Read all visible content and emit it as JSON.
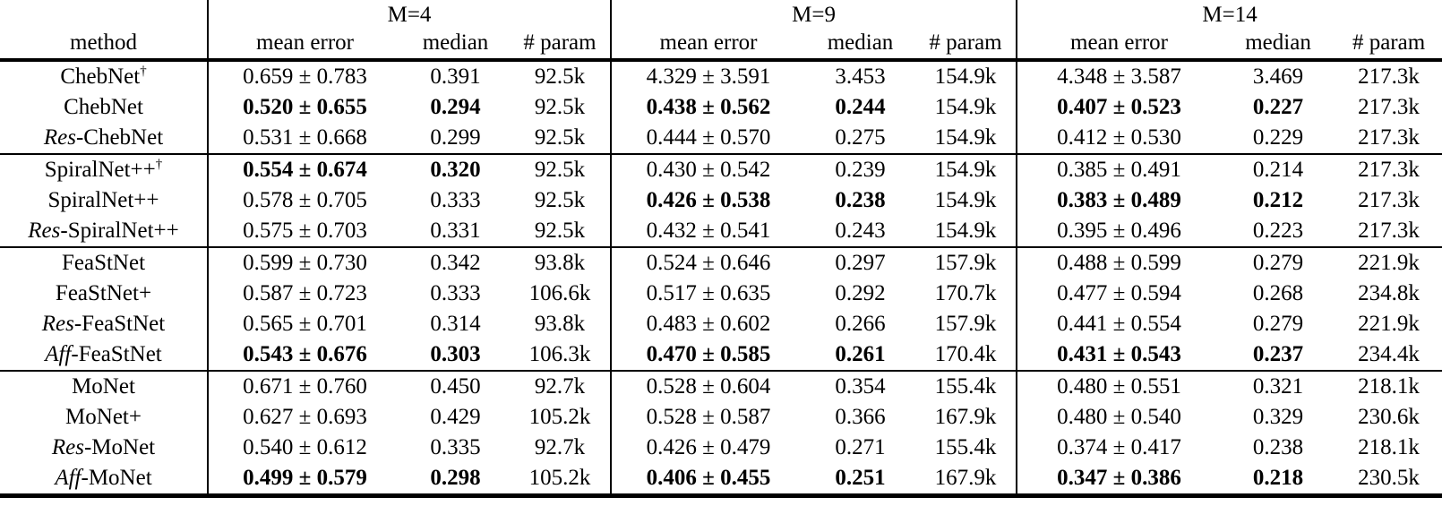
{
  "table": {
    "m_labels": [
      "M=4",
      "M=9",
      "M=14"
    ],
    "method_header": "method",
    "sub_headers": [
      "mean error",
      "median",
      "# param"
    ],
    "groups": [
      {
        "rows": [
          {
            "method": {
              "italic_prefix": "",
              "name": "ChebNet",
              "superscript": "†"
            },
            "blocks": [
              {
                "mean_error": "0.659 ± 0.783",
                "median": "0.391",
                "params": "92.5k",
                "bold": false
              },
              {
                "mean_error": "4.329 ± 3.591",
                "median": "3.453",
                "params": "154.9k",
                "bold": false
              },
              {
                "mean_error": "4.348 ± 3.587",
                "median": "3.469",
                "params": "217.3k",
                "bold": false
              }
            ]
          },
          {
            "method": {
              "italic_prefix": "",
              "name": "ChebNet",
              "superscript": ""
            },
            "blocks": [
              {
                "mean_error": "0.520 ± 0.655",
                "median": "0.294",
                "params": "92.5k",
                "bold": true
              },
              {
                "mean_error": "0.438 ± 0.562",
                "median": "0.244",
                "params": "154.9k",
                "bold": true
              },
              {
                "mean_error": "0.407 ± 0.523",
                "median": "0.227",
                "params": "217.3k",
                "bold": true
              }
            ]
          },
          {
            "method": {
              "italic_prefix": "Res",
              "name": "-ChebNet",
              "superscript": ""
            },
            "blocks": [
              {
                "mean_error": "0.531 ± 0.668",
                "median": "0.299",
                "params": "92.5k",
                "bold": false
              },
              {
                "mean_error": "0.444 ± 0.570",
                "median": "0.275",
                "params": "154.9k",
                "bold": false
              },
              {
                "mean_error": "0.412 ± 0.530",
                "median": "0.229",
                "params": "217.3k",
                "bold": false
              }
            ]
          }
        ]
      },
      {
        "rows": [
          {
            "method": {
              "italic_prefix": "",
              "name": "SpiralNet++",
              "superscript": "†"
            },
            "blocks": [
              {
                "mean_error": "0.554 ± 0.674",
                "median": "0.320",
                "params": "92.5k",
                "bold": true
              },
              {
                "mean_error": "0.430 ± 0.542",
                "median": "0.239",
                "params": "154.9k",
                "bold": false
              },
              {
                "mean_error": "0.385 ± 0.491",
                "median": "0.214",
                "params": "217.3k",
                "bold": false
              }
            ]
          },
          {
            "method": {
              "italic_prefix": "",
              "name": "SpiralNet++",
              "superscript": ""
            },
            "blocks": [
              {
                "mean_error": "0.578 ± 0.705",
                "median": "0.333",
                "params": "92.5k",
                "bold": false
              },
              {
                "mean_error": "0.426 ± 0.538",
                "median": "0.238",
                "params": "154.9k",
                "bold": true
              },
              {
                "mean_error": "0.383 ± 0.489",
                "median": "0.212",
                "params": "217.3k",
                "bold": true
              }
            ]
          },
          {
            "method": {
              "italic_prefix": "Res",
              "name": "-SpiralNet++",
              "superscript": ""
            },
            "blocks": [
              {
                "mean_error": "0.575 ± 0.703",
                "median": "0.331",
                "params": "92.5k",
                "bold": false
              },
              {
                "mean_error": "0.432 ± 0.541",
                "median": "0.243",
                "params": "154.9k",
                "bold": false
              },
              {
                "mean_error": "0.395 ± 0.496",
                "median": "0.223",
                "params": "217.3k",
                "bold": false
              }
            ]
          }
        ]
      },
      {
        "rows": [
          {
            "method": {
              "italic_prefix": "",
              "name": "FeaStNet",
              "superscript": ""
            },
            "blocks": [
              {
                "mean_error": "0.599 ± 0.730",
                "median": "0.342",
                "params": "93.8k",
                "bold": false
              },
              {
                "mean_error": "0.524 ± 0.646",
                "median": "0.297",
                "params": "157.9k",
                "bold": false
              },
              {
                "mean_error": "0.488 ± 0.599",
                "median": "0.279",
                "params": "221.9k",
                "bold": false
              }
            ]
          },
          {
            "method": {
              "italic_prefix": "",
              "name": "FeaStNet+",
              "superscript": ""
            },
            "blocks": [
              {
                "mean_error": "0.587 ± 0.723",
                "median": "0.333",
                "params": "106.6k",
                "bold": false
              },
              {
                "mean_error": "0.517 ± 0.635",
                "median": "0.292",
                "params": "170.7k",
                "bold": false
              },
              {
                "mean_error": "0.477 ± 0.594",
                "median": "0.268",
                "params": "234.8k",
                "bold": false
              }
            ]
          },
          {
            "method": {
              "italic_prefix": "Res",
              "name": "-FeaStNet",
              "superscript": ""
            },
            "blocks": [
              {
                "mean_error": "0.565 ± 0.701",
                "median": "0.314",
                "params": "93.8k",
                "bold": false
              },
              {
                "mean_error": "0.483 ± 0.602",
                "median": "0.266",
                "params": "157.9k",
                "bold": false
              },
              {
                "mean_error": "0.441 ± 0.554",
                "median": "0.279",
                "params": "221.9k",
                "bold": false
              }
            ]
          },
          {
            "method": {
              "italic_prefix": "Aff",
              "name": "-FeaStNet",
              "superscript": ""
            },
            "blocks": [
              {
                "mean_error": "0.543 ± 0.676",
                "median": "0.303",
                "params": "106.3k",
                "bold": true
              },
              {
                "mean_error": "0.470 ± 0.585",
                "median": "0.261",
                "params": "170.4k",
                "bold": true
              },
              {
                "mean_error": "0.431 ± 0.543",
                "median": "0.237",
                "params": "234.4k",
                "bold": true
              }
            ]
          }
        ]
      },
      {
        "rows": [
          {
            "method": {
              "italic_prefix": "",
              "name": "MoNet",
              "superscript": ""
            },
            "blocks": [
              {
                "mean_error": "0.671 ± 0.760",
                "median": "0.450",
                "params": "92.7k",
                "bold": false
              },
              {
                "mean_error": "0.528 ± 0.604",
                "median": "0.354",
                "params": "155.4k",
                "bold": false
              },
              {
                "mean_error": "0.480 ± 0.551",
                "median": "0.321",
                "params": "218.1k",
                "bold": false
              }
            ]
          },
          {
            "method": {
              "italic_prefix": "",
              "name": "MoNet+",
              "superscript": ""
            },
            "blocks": [
              {
                "mean_error": "0.627 ± 0.693",
                "median": "0.429",
                "params": "105.2k",
                "bold": false
              },
              {
                "mean_error": "0.528 ± 0.587",
                "median": "0.366",
                "params": "167.9k",
                "bold": false
              },
              {
                "mean_error": "0.480 ± 0.540",
                "median": "0.329",
                "params": "230.6k",
                "bold": false
              }
            ]
          },
          {
            "method": {
              "italic_prefix": "Res",
              "name": "-MoNet",
              "superscript": ""
            },
            "blocks": [
              {
                "mean_error": "0.540 ± 0.612",
                "median": "0.335",
                "params": "92.7k",
                "bold": false
              },
              {
                "mean_error": "0.426 ± 0.479",
                "median": "0.271",
                "params": "155.4k",
                "bold": false
              },
              {
                "mean_error": "0.374 ± 0.417",
                "median": "0.238",
                "params": "218.1k",
                "bold": false
              }
            ]
          },
          {
            "method": {
              "italic_prefix": "Aff",
              "name": "-MoNet",
              "superscript": ""
            },
            "blocks": [
              {
                "mean_error": "0.499 ± 0.579",
                "median": "0.298",
                "params": "105.2k",
                "bold": true
              },
              {
                "mean_error": "0.406 ± 0.455",
                "median": "0.251",
                "params": "167.9k",
                "bold": true
              },
              {
                "mean_error": "0.347 ± 0.386",
                "median": "0.218",
                "params": "230.5k",
                "bold": true
              }
            ]
          }
        ]
      }
    ]
  }
}
